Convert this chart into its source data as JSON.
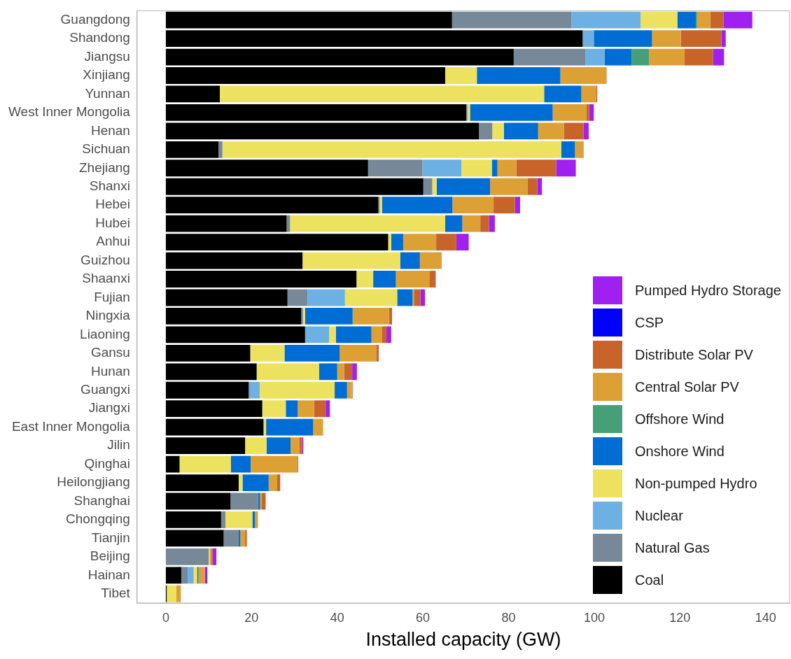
{
  "chart_data": {
    "type": "bar",
    "orientation": "horizontal",
    "stacked": true,
    "xlabel": "Installed capacity (GW)",
    "legend": "bottom right",
    "grid": false,
    "categories": [
      "Guangdong",
      "Shandong",
      "Jiangsu",
      "Xinjiang",
      "Yunnan",
      "West Inner Mongolia",
      "Henan",
      "Sichuan",
      "Zhejiang",
      "Shanxi",
      "Hebei",
      "Hubei",
      "Anhui",
      "Guizhou",
      "Shaanxi",
      "Fujian",
      "Ningxia",
      "Liaoning",
      "Gansu",
      "Hunan",
      "Guangxi",
      "Jiangxi",
      "East Inner Mongolia",
      "Jilin",
      "Qinghai",
      "Heilongjiang",
      "Shanghai",
      "Chongqing",
      "Tianjin",
      "Beijing",
      "Hainan",
      "Tibet"
    ],
    "xlim": [
      -6.7,
      145.6
    ],
    "xticks": [
      0,
      20,
      40,
      60,
      80,
      100,
      120,
      140
    ],
    "series": [
      {
        "name": "Coal",
        "color": "#000000",
        "values": [
          66.8,
          97.3,
          81.2,
          65.2,
          12.6,
          70.1,
          73.1,
          12.3,
          47.2,
          60.1,
          49.6,
          28.2,
          51.9,
          31.9,
          44.5,
          28.4,
          31.6,
          32.5,
          19.7,
          21.2,
          19.3,
          22.5,
          22.8,
          18.5,
          3.2,
          17.0,
          15.1,
          12.9,
          13.5,
          0,
          3.6,
          0.2
        ]
      },
      {
        "name": "Natural Gas",
        "color": "#778899",
        "values": [
          27.9,
          0,
          16.7,
          0,
          0,
          0.3,
          3.1,
          0.9,
          12.7,
          2.1,
          0.3,
          0.8,
          0,
          0,
          0,
          4.7,
          0.4,
          0,
          0,
          0,
          0.3,
          0,
          0,
          0,
          0,
          0,
          6.4,
          1.0,
          3.5,
          10.0,
          1.5,
          0
        ]
      },
      {
        "name": "Nuclear",
        "color": "#6cb0e4",
        "values": [
          16.1,
          2.6,
          4.5,
          0,
          0,
          0,
          0,
          0,
          9.1,
          0,
          0,
          0,
          0,
          0,
          0,
          8.7,
          0,
          5.6,
          0,
          0,
          2.3,
          0,
          0,
          0,
          0,
          0,
          0,
          0,
          0,
          0,
          1.4,
          0
        ]
      },
      {
        "name": "Non-pumped Hydro",
        "color": "#ede25f",
        "values": [
          8.6,
          0,
          0,
          7.4,
          75.7,
          0.6,
          2.7,
          79.1,
          7.1,
          1.0,
          0.6,
          36.2,
          0.7,
          22.8,
          3.9,
          12.2,
          0.5,
          1.6,
          8.0,
          14.6,
          17.5,
          5.5,
          0.6,
          5.0,
          12.0,
          0.9,
          0,
          6.3,
          0,
          0.3,
          0.8,
          2.2
        ]
      },
      {
        "name": "Onshore Wind",
        "color": "#006dd4",
        "values": [
          4.3,
          13.6,
          6.3,
          19.5,
          8.7,
          19.3,
          8.0,
          3.2,
          1.3,
          12.5,
          16.4,
          4.0,
          2.8,
          4.6,
          5.3,
          3.6,
          11.1,
          8.3,
          12.9,
          4.2,
          2.9,
          2.8,
          11.0,
          5.6,
          4.6,
          6.1,
          0.5,
          0.6,
          0.4,
          0,
          0.3,
          0
        ]
      },
      {
        "name": "Offshore Wind",
        "color": "#45a078",
        "values": [
          0.3,
          0,
          4.1,
          0,
          0,
          0,
          0,
          0,
          0,
          0,
          0,
          0,
          0,
          0,
          0,
          0,
          0,
          0,
          0,
          0,
          0,
          0,
          0,
          0,
          0,
          0,
          0,
          0,
          0,
          0,
          0,
          0
        ]
      },
      {
        "name": "Central Solar PV",
        "color": "#dda035",
        "values": [
          3.1,
          6.7,
          8.3,
          10.8,
          3.5,
          7.9,
          6.0,
          1.8,
          4.4,
          8.7,
          9.6,
          4.2,
          7.7,
          5.0,
          7.8,
          0.3,
          8.5,
          2.5,
          8.5,
          1.6,
          1.1,
          3.8,
          2.3,
          2.1,
          10.9,
          2.0,
          0.3,
          0.7,
          1.1,
          0.3,
          1.5,
          1.1
        ]
      },
      {
        "name": "Distribute Solar PV",
        "color": "#c8632a",
        "values": [
          3.1,
          9.5,
          6.6,
          0,
          0.2,
          0.6,
          4.6,
          0.2,
          9.3,
          2.3,
          5.0,
          2.0,
          4.7,
          0.1,
          1.5,
          1.5,
          0.7,
          1.0,
          0.6,
          1.9,
          0.2,
          2.7,
          0,
          0.6,
          0.2,
          0.7,
          1.0,
          0,
          0.4,
          0.3,
          0,
          0
        ]
      },
      {
        "name": "CSP",
        "color": "#0000ff",
        "values": [
          0,
          0,
          0,
          0,
          0,
          0,
          0,
          0,
          0,
          0,
          0,
          0,
          0,
          0,
          0,
          0,
          0,
          0,
          0,
          0,
          0,
          0,
          0,
          0,
          0,
          0,
          0,
          0,
          0,
          0,
          0,
          0
        ]
      },
      {
        "name": "Pumped Hydro Storage",
        "color": "#a020f0",
        "values": [
          6.7,
          1.0,
          2.6,
          0,
          0,
          1.1,
          1.2,
          0,
          4.6,
          1.1,
          1.2,
          1.4,
          2.9,
          0,
          0,
          1.1,
          0,
          1.1,
          0,
          1.1,
          0,
          1.0,
          0,
          0.3,
          0,
          0,
          0,
          0,
          0,
          0.9,
          0.6,
          0
        ]
      }
    ]
  }
}
